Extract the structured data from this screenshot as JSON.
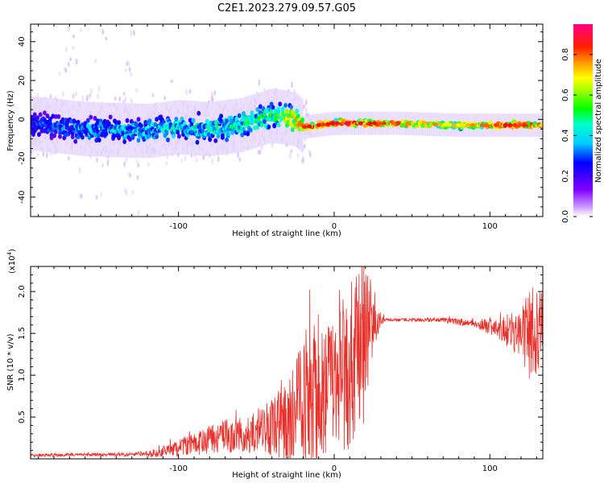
{
  "title": "C2E1.2023.279.09.57.G05",
  "chart_data": [
    {
      "type": "heatmap",
      "xlabel": "Height of straight line (km)",
      "ylabel": "Frequency (Hz)",
      "xlim": [
        -195,
        134
      ],
      "ylim": [
        -50,
        49
      ],
      "xticks": [
        -100,
        0,
        100
      ],
      "yticks": [
        -40,
        -20,
        0,
        20,
        40
      ],
      "colorbar": {
        "label": "Normalized spectral amplitude",
        "range": [
          0.0,
          0.95
        ],
        "ticks": [
          0.0,
          0.2,
          0.4,
          0.6,
          0.8
        ],
        "tick_labels": [
          "0.0",
          "0.2",
          "0.4",
          "0.6",
          "0.8"
        ],
        "colors": [
          "#ffffff",
          "#8000ff",
          "#0000ff",
          "#00ffff",
          "#00ff00",
          "#ffff00",
          "#ff8000",
          "#ff0000",
          "#ff0080"
        ]
      },
      "band_centerline": {
        "x": [
          -195,
          -160,
          -120,
          -100,
          -80,
          -60,
          -40,
          -25,
          -20,
          -10,
          0,
          20,
          40,
          80,
          110,
          134
        ],
        "y": [
          -2,
          -5,
          -6,
          -4,
          -5,
          -3,
          2,
          0,
          -4,
          -3,
          -2,
          -2,
          -2,
          -3,
          -3,
          -3
        ]
      },
      "band_peak_amplitude": {
        "x": [
          -195,
          -150,
          -110,
          -80,
          -40,
          -20,
          -10,
          20,
          40,
          80,
          110,
          134
        ],
        "amplitude": [
          0.3,
          0.38,
          0.42,
          0.45,
          0.5,
          0.85,
          0.9,
          0.9,
          0.85,
          0.65,
          0.9,
          0.85
        ]
      }
    },
    {
      "type": "line",
      "xlabel": "Height of straight line (km)",
      "ylabel": "SNR (10 * v/v)",
      "yscale_label": "(x10",
      "yscale_exp": "4",
      "yscale_close": ")",
      "xlim": [
        -195,
        134
      ],
      "ylim": [
        0,
        2.3
      ],
      "xticks": [
        -100,
        0,
        100
      ],
      "yticks": [
        0.5,
        1.0,
        1.5,
        2.0
      ],
      "ytick_labels": [
        "0.5",
        "1.0",
        "1.5",
        "2.0"
      ],
      "series": [
        {
          "color": "#e8302a",
          "envelope": {
            "x": [
              -195,
              -160,
              -130,
              -110,
              -90,
              -70,
              -50,
              -30,
              -20,
              -10,
              0,
              10,
              20,
              25,
              30,
              35,
              50,
              70,
              90,
              100,
              110,
              120,
              125,
              134
            ],
            "center": [
              0.04,
              0.05,
              0.05,
              0.08,
              0.18,
              0.28,
              0.32,
              0.42,
              0.7,
              0.78,
              0.9,
              1.1,
              1.45,
              1.6,
              1.65,
              1.66,
              1.66,
              1.66,
              1.62,
              1.58,
              1.55,
              1.5,
              1.5,
              1.6
            ],
            "spread": [
              0.02,
              0.02,
              0.02,
              0.06,
              0.14,
              0.2,
              0.25,
              0.5,
              0.85,
              0.85,
              0.9,
              1.0,
              1.0,
              0.3,
              0.05,
              0.02,
              0.02,
              0.03,
              0.05,
              0.1,
              0.18,
              0.3,
              0.55,
              0.55
            ]
          }
        }
      ]
    }
  ]
}
